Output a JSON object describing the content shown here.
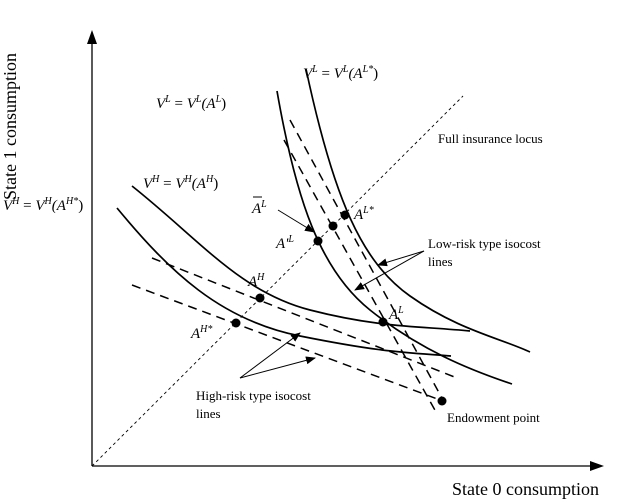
{
  "axes": {
    "x_label": "State 0 consumption",
    "y_label": "State 1 consumption"
  },
  "labels": {
    "full_insurance": "Full insurance locus",
    "low_risk_isocost_line1": "Low-risk type isocost",
    "low_risk_isocost_line2": "lines",
    "high_risk_isocost_line1": "High-risk type isocost",
    "high_risk_isocost_line2": "lines",
    "endowment": "Endowment point"
  },
  "curves": {
    "vl_star": {
      "lhs": "V",
      "lhs_sup": "L",
      "eq": " = ",
      "rhs": "V",
      "rhs_sup": "L",
      "arg": "(A",
      "arg_sup": "L*",
      "close": ")"
    },
    "vl": {
      "lhs": "V",
      "lhs_sup": "L",
      "eq": " = ",
      "rhs": "V",
      "rhs_sup": "L",
      "arg": "(A",
      "arg_sup": "L",
      "close": ")"
    },
    "vh": {
      "lhs": "V",
      "lhs_sup": "H",
      "eq": " = ",
      "rhs": "V",
      "rhs_sup": "H",
      "arg": "(A",
      "arg_sup": "H",
      "close": ")"
    },
    "vh_star": {
      "lhs": "V",
      "lhs_sup": "H",
      "eq": " = ",
      "rhs": "V",
      "rhs_sup": "H",
      "arg": "(A",
      "arg_sup": "H*",
      "close": ")"
    }
  },
  "points": {
    "a_bar_l": {
      "base": "A",
      "sup": "L"
    },
    "a_prime_l": {
      "base": "A'",
      "sup": "L"
    },
    "a_l_star": {
      "base": "A",
      "sup": "L*"
    },
    "a_h": {
      "base": "A",
      "sup": "H"
    },
    "a_l": {
      "base": "A",
      "sup": "L"
    },
    "a_h_star": {
      "base": "A",
      "sup": "H*"
    }
  }
}
